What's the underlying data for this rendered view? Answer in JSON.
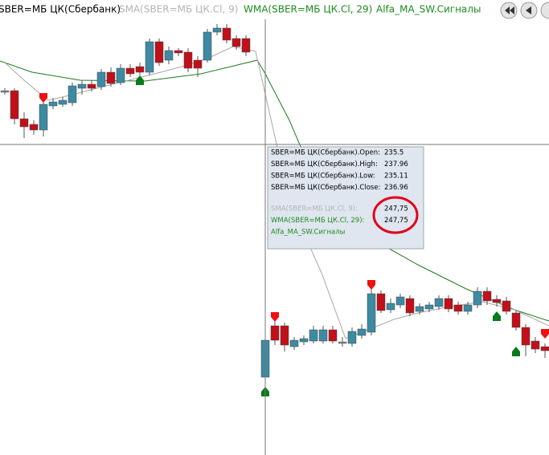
{
  "header": {
    "legend": [
      {
        "text": "SBER=МБ ЦК(Сбербанк)",
        "color": "#000000"
      },
      {
        "text": "SMA(SBER=МБ ЦК.Cl, 9)",
        "color": "#b4b4b4"
      },
      {
        "text": "WMA(SBER=МБ ЦК.Cl, 29)",
        "color": "#1e8a1e"
      },
      {
        "text": "Alfa_MA_SW.Сигналы",
        "color": "#1e8a1e"
      }
    ]
  },
  "tooltip": {
    "rows": [
      {
        "label": "SBER=МБ ЦК(Сбербанк).Open:",
        "value": "235.5",
        "color": "#000000"
      },
      {
        "label": "SBER=МБ ЦК(Сбербанк).High:",
        "value": "237.96",
        "color": "#000000"
      },
      {
        "label": "SBER=МБ ЦК(Сбербанк).Low:",
        "value": "235.11",
        "color": "#000000"
      },
      {
        "label": "SBER=МБ ЦК(Сбербанк).Close:",
        "value": "236.96",
        "color": "#000000"
      },
      {
        "label": "SMA(SBER=МБ ЦК.Cl, 9):",
        "value": "247,75",
        "color": "#b4b4b4"
      },
      {
        "label": "WMA(SBER=МБ ЦК.Cl, 29):",
        "value": "247,75",
        "color": "#1e8a1e"
      },
      {
        "label": "Alfa_MA_SW.Сигналы",
        "color": "#1e8a1e"
      }
    ]
  }
}
